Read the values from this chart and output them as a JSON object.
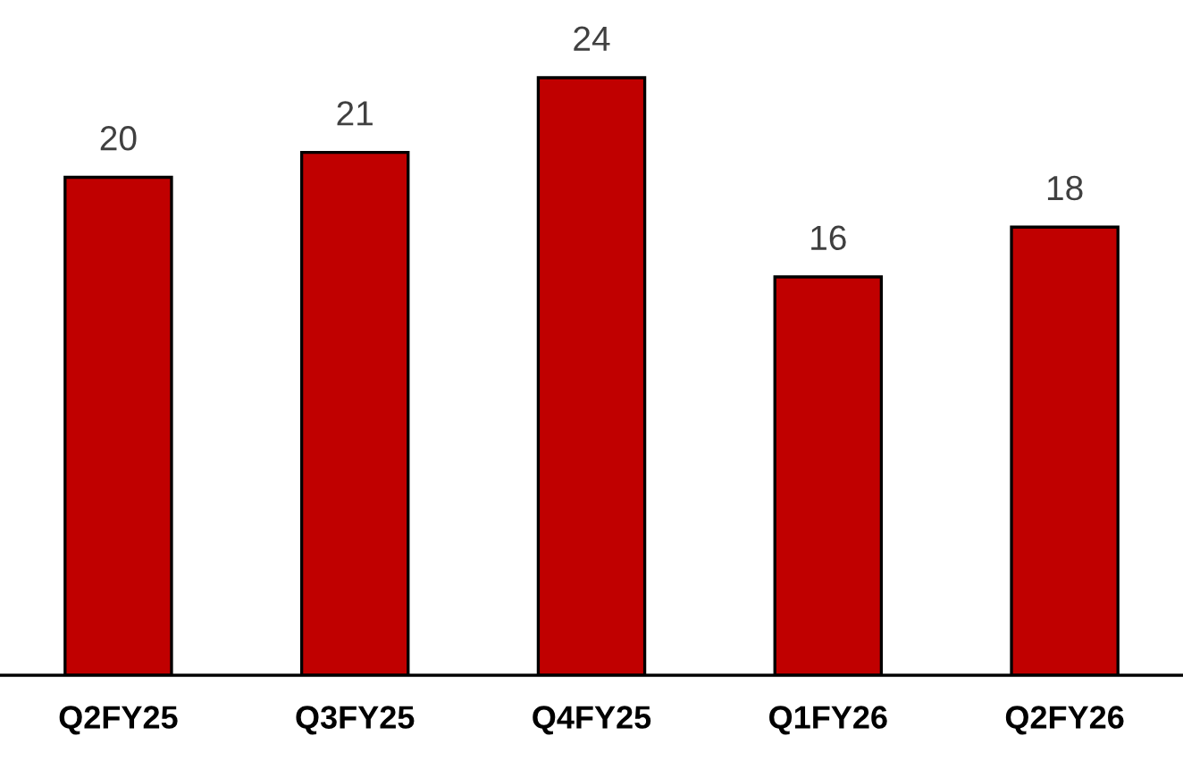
{
  "chart_data": {
    "type": "bar",
    "categories": [
      "Q2FY25",
      "Q3FY25",
      "Q4FY25",
      "Q1FY26",
      "Q2FY26"
    ],
    "values": [
      20,
      21,
      24,
      16,
      18
    ],
    "color": "#c00000",
    "data_labels": true,
    "grid": false,
    "legend": false
  }
}
